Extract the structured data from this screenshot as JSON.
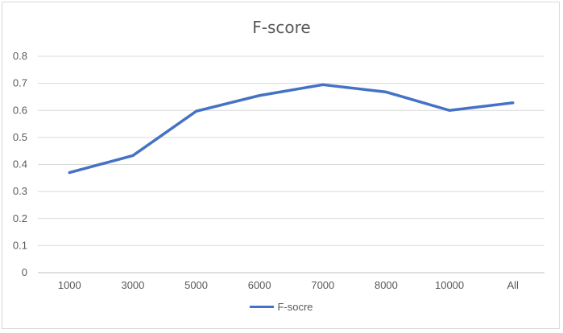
{
  "chart_data": {
    "type": "line",
    "title": "F-score",
    "categories": [
      "1000",
      "3000",
      "5000",
      "6000",
      "7000",
      "8000",
      "10000",
      "All"
    ],
    "series": [
      {
        "name": "F-socre",
        "values": [
          0.37,
          0.433,
          0.597,
          0.655,
          0.695,
          0.668,
          0.6,
          0.628
        ],
        "color": "#4472c4"
      }
    ],
    "ylim": [
      0,
      0.8
    ],
    "yticks": [
      "0",
      "0.1",
      "0.2",
      "0.3",
      "0.4",
      "0.5",
      "0.6",
      "0.7",
      "0.8"
    ],
    "grid": true,
    "legend": "bottom"
  }
}
